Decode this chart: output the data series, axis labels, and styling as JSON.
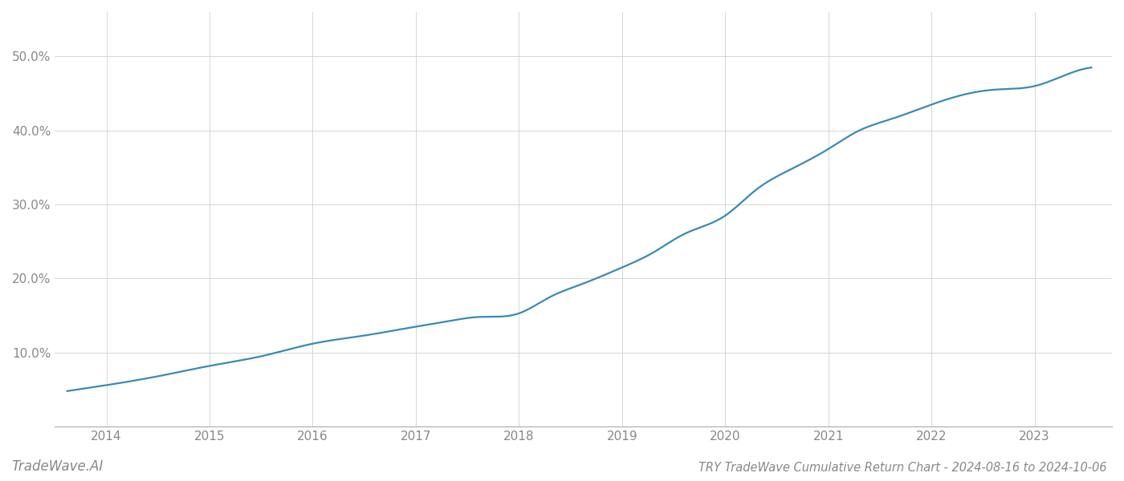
{
  "title": "TRY TradeWave Cumulative Return Chart - 2024-08-16 to 2024-10-06",
  "watermark": "TradeWave.AI",
  "line_color": "#3a8ab5",
  "background_color": "#ffffff",
  "grid_color": "#d0d0d0",
  "x_years": [
    2014,
    2015,
    2016,
    2017,
    2018,
    2019,
    2020,
    2021,
    2022,
    2023
  ],
  "key_x": [
    2013.62,
    2014.0,
    2014.5,
    2015.0,
    2015.5,
    2016.0,
    2016.5,
    2017.0,
    2017.3,
    2017.6,
    2018.0,
    2018.3,
    2018.6,
    2019.0,
    2019.3,
    2019.6,
    2020.0,
    2020.3,
    2020.6,
    2021.0,
    2021.3,
    2021.6,
    2022.0,
    2022.3,
    2022.6,
    2023.0,
    2023.3,
    2023.55
  ],
  "key_y": [
    4.8,
    5.6,
    6.8,
    8.2,
    9.5,
    11.2,
    12.3,
    13.5,
    14.2,
    14.8,
    15.3,
    17.5,
    19.2,
    21.5,
    23.5,
    26.0,
    28.5,
    32.0,
    34.5,
    37.5,
    40.0,
    41.5,
    43.5,
    44.8,
    45.5,
    46.0,
    47.5,
    48.5
  ],
  "xlim": [
    2013.5,
    2023.75
  ],
  "ylim": [
    0,
    56
  ],
  "yticks": [
    10.0,
    20.0,
    30.0,
    40.0,
    50.0
  ],
  "ytick_labels": [
    "10.0%",
    "20.0%",
    "30.0%",
    "40.0%",
    "50.0%"
  ],
  "title_fontsize": 10.5,
  "tick_fontsize": 11,
  "watermark_fontsize": 12,
  "line_width": 1.6,
  "tick_color": "#888888",
  "spine_color": "#aaaaaa"
}
